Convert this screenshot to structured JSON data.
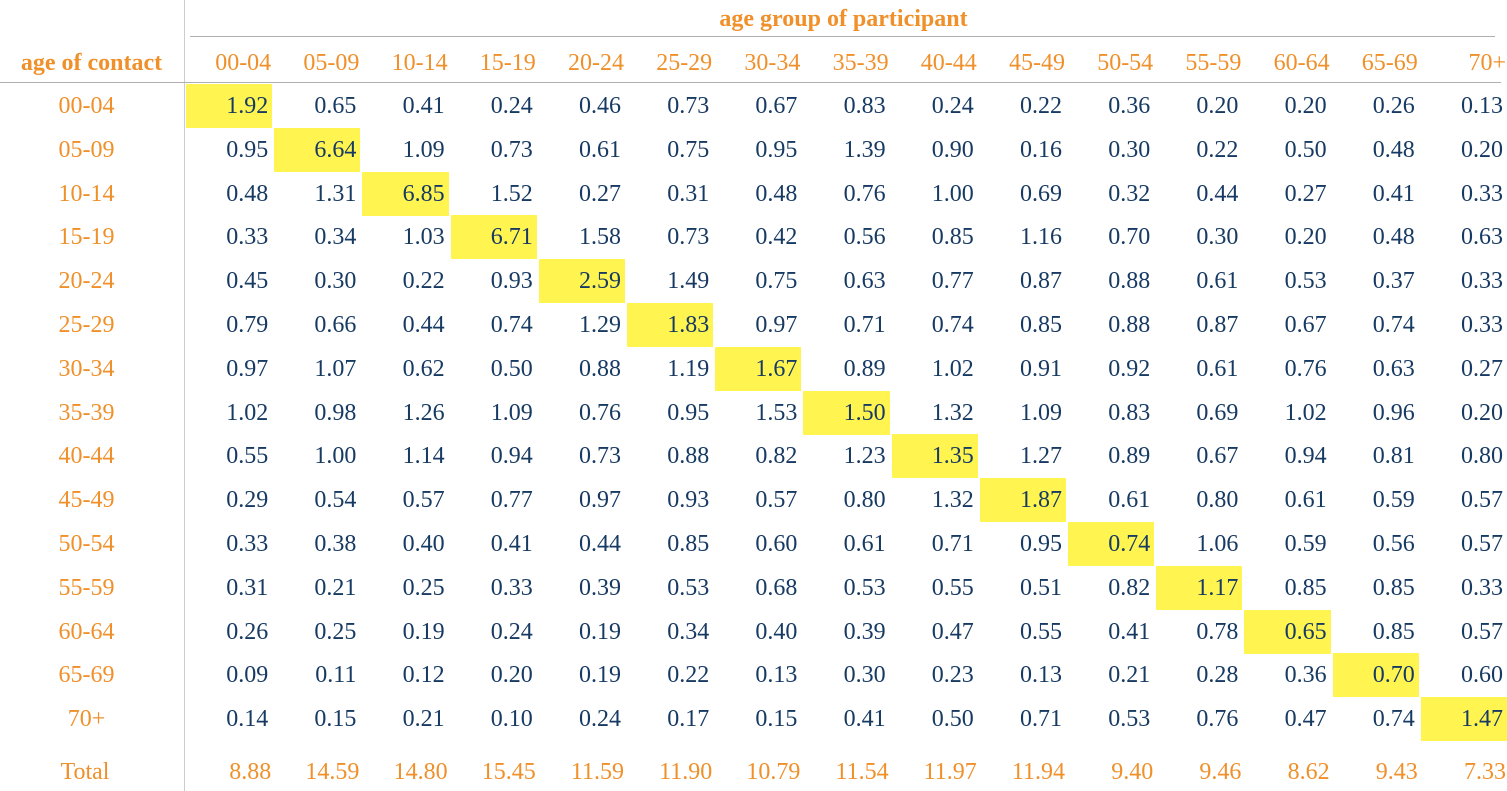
{
  "chart_data": {
    "type": "heatmap",
    "column_title": "age group of participant",
    "row_title": "age of contact",
    "columns": [
      "00-04",
      "05-09",
      "10-14",
      "15-19",
      "20-24",
      "25-29",
      "30-34",
      "35-39",
      "40-44",
      "45-49",
      "50-54",
      "55-59",
      "60-64",
      "65-69",
      "70+"
    ],
    "rows": [
      "00-04",
      "05-09",
      "10-14",
      "15-19",
      "20-24",
      "25-29",
      "30-34",
      "35-39",
      "40-44",
      "45-49",
      "50-54",
      "55-59",
      "60-64",
      "65-69",
      "70+"
    ],
    "values": [
      [
        "1.92",
        "0.65",
        "0.41",
        "0.24",
        "0.46",
        "0.73",
        "0.67",
        "0.83",
        "0.24",
        "0.22",
        "0.36",
        "0.20",
        "0.20",
        "0.26",
        "0.13"
      ],
      [
        "0.95",
        "6.64",
        "1.09",
        "0.73",
        "0.61",
        "0.75",
        "0.95",
        "1.39",
        "0.90",
        "0.16",
        "0.30",
        "0.22",
        "0.50",
        "0.48",
        "0.20"
      ],
      [
        "0.48",
        "1.31",
        "6.85",
        "1.52",
        "0.27",
        "0.31",
        "0.48",
        "0.76",
        "1.00",
        "0.69",
        "0.32",
        "0.44",
        "0.27",
        "0.41",
        "0.33"
      ],
      [
        "0.33",
        "0.34",
        "1.03",
        "6.71",
        "1.58",
        "0.73",
        "0.42",
        "0.56",
        "0.85",
        "1.16",
        "0.70",
        "0.30",
        "0.20",
        "0.48",
        "0.63"
      ],
      [
        "0.45",
        "0.30",
        "0.22",
        "0.93",
        "2.59",
        "1.49",
        "0.75",
        "0.63",
        "0.77",
        "0.87",
        "0.88",
        "0.61",
        "0.53",
        "0.37",
        "0.33"
      ],
      [
        "0.79",
        "0.66",
        "0.44",
        "0.74",
        "1.29",
        "1.83",
        "0.97",
        "0.71",
        "0.74",
        "0.85",
        "0.88",
        "0.87",
        "0.67",
        "0.74",
        "0.33"
      ],
      [
        "0.97",
        "1.07",
        "0.62",
        "0.50",
        "0.88",
        "1.19",
        "1.67",
        "0.89",
        "1.02",
        "0.91",
        "0.92",
        "0.61",
        "0.76",
        "0.63",
        "0.27"
      ],
      [
        "1.02",
        "0.98",
        "1.26",
        "1.09",
        "0.76",
        "0.95",
        "1.53",
        "1.50",
        "1.32",
        "1.09",
        "0.83",
        "0.69",
        "1.02",
        "0.96",
        "0.20"
      ],
      [
        "0.55",
        "1.00",
        "1.14",
        "0.94",
        "0.73",
        "0.88",
        "0.82",
        "1.23",
        "1.35",
        "1.27",
        "0.89",
        "0.67",
        "0.94",
        "0.81",
        "0.80"
      ],
      [
        "0.29",
        "0.54",
        "0.57",
        "0.77",
        "0.97",
        "0.93",
        "0.57",
        "0.80",
        "1.32",
        "1.87",
        "0.61",
        "0.80",
        "0.61",
        "0.59",
        "0.57"
      ],
      [
        "0.33",
        "0.38",
        "0.40",
        "0.41",
        "0.44",
        "0.85",
        "0.60",
        "0.61",
        "0.71",
        "0.95",
        "0.74",
        "1.06",
        "0.59",
        "0.56",
        "0.57"
      ],
      [
        "0.31",
        "0.21",
        "0.25",
        "0.33",
        "0.39",
        "0.53",
        "0.68",
        "0.53",
        "0.55",
        "0.51",
        "0.82",
        "1.17",
        "0.85",
        "0.85",
        "0.33"
      ],
      [
        "0.26",
        "0.25",
        "0.19",
        "0.24",
        "0.19",
        "0.34",
        "0.40",
        "0.39",
        "0.47",
        "0.55",
        "0.41",
        "0.78",
        "0.65",
        "0.85",
        "0.57"
      ],
      [
        "0.09",
        "0.11",
        "0.12",
        "0.20",
        "0.19",
        "0.22",
        "0.13",
        "0.30",
        "0.23",
        "0.13",
        "0.21",
        "0.28",
        "0.36",
        "0.70",
        "0.60"
      ],
      [
        "0.14",
        "0.15",
        "0.21",
        "0.10",
        "0.24",
        "0.17",
        "0.15",
        "0.41",
        "0.50",
        "0.71",
        "0.53",
        "0.76",
        "0.47",
        "0.74",
        "1.47"
      ]
    ],
    "total_label": "Total",
    "totals": [
      "8.88",
      "14.59",
      "14.80",
      "15.45",
      "11.59",
      "11.90",
      "10.79",
      "11.54",
      "11.97",
      "11.94",
      "9.40",
      "9.46",
      "8.62",
      "9.43",
      "7.33"
    ],
    "highlight": "diagonal",
    "colors": {
      "accent_text": "#f0902b",
      "value_text": "#173a63",
      "highlight": "#fff450"
    }
  }
}
